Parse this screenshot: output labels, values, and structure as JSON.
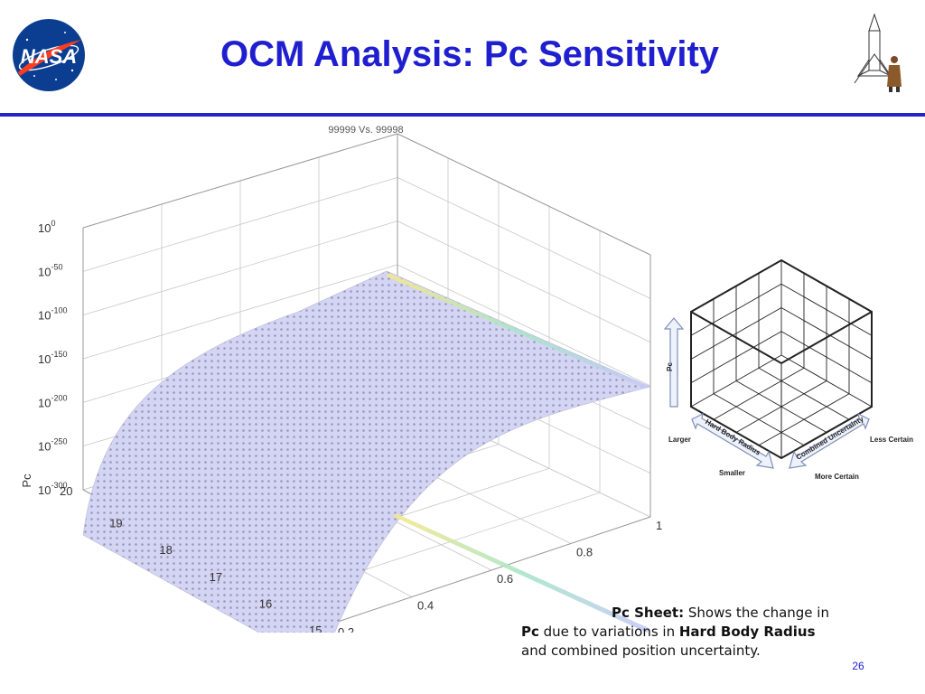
{
  "slide": {
    "title": "OCM Analysis:  Pc Sensitivity",
    "page_number": "26"
  },
  "logos": {
    "left": {
      "icon": "nasa-meatball-logo",
      "text": "NASA",
      "color": "#0b3d91",
      "accent": "#fc3d21"
    },
    "right": {
      "icon": "rocket-astronaut-logo"
    }
  },
  "chart_data": {
    "type": "surface",
    "title": "99999 Vs. 99998",
    "zlabel": "Pc",
    "x_axis": {
      "ticks": [
        "20",
        "19",
        "18",
        "17",
        "16",
        "15"
      ],
      "range": [
        15,
        20
      ]
    },
    "y_axis": {
      "ticks": [
        "0.2",
        "0.4",
        "0.6",
        "0.8",
        "1"
      ],
      "range": [
        0.2,
        1
      ]
    },
    "z_axis": {
      "scale": "log",
      "ticks": [
        {
          "base": "10",
          "exp": "0"
        },
        {
          "base": "10",
          "exp": "-50"
        },
        {
          "base": "10",
          "exp": "-100"
        },
        {
          "base": "10",
          "exp": "-150"
        },
        {
          "base": "10",
          "exp": "-200"
        },
        {
          "base": "10",
          "exp": "-250"
        },
        {
          "base": "10",
          "exp": "-300"
        }
      ],
      "range": [
        -300,
        0
      ]
    },
    "grid": true,
    "surface_color": "#d4d4f4",
    "mesh_color": "#9a9ab4"
  },
  "legend_cube": {
    "z_label": "Pc",
    "hbr_label": "Hard Body Radius",
    "cu_label": "Combined Uncertainty",
    "larger": "Larger",
    "smaller": "Smaller",
    "less_certain": "Less Certain",
    "more_certain": "More Certain"
  },
  "caption": {
    "b1": "Pc Sheet:",
    "t1": "  Shows the change in",
    "b2": "Pc",
    "t2": " due to variations in ",
    "b3": "Hard Body Radius",
    "t3": "and combined position uncertainty."
  }
}
